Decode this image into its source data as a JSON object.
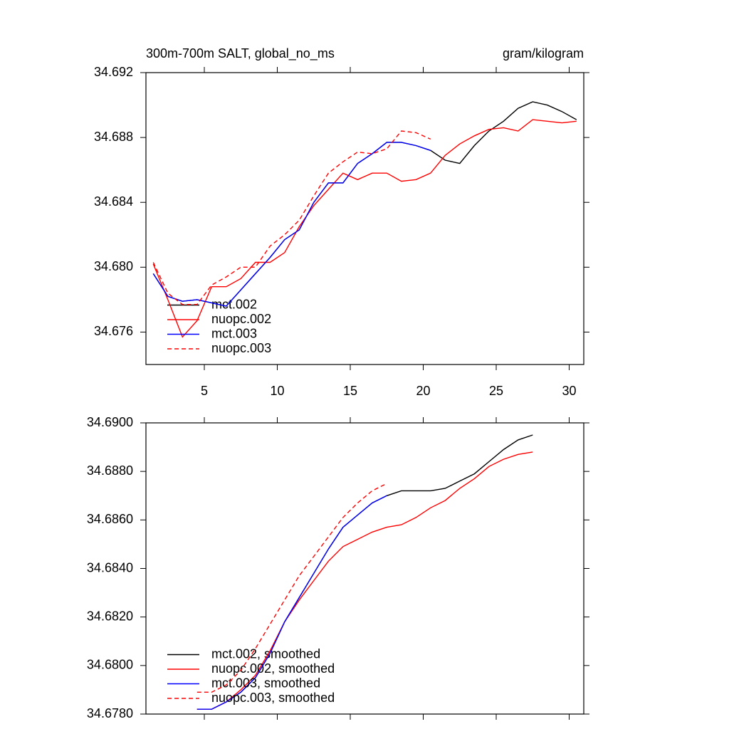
{
  "chart_data": [
    {
      "type": "line",
      "title": "300m-700m SALT, global_no_ms",
      "units": "gram/kilogram",
      "x": [
        1.5,
        2.5,
        3.5,
        4.5,
        5.5,
        6.5,
        7.5,
        8.5,
        9.5,
        10.5,
        11.5,
        12.5,
        13.5,
        14.5,
        15.5,
        16.5,
        17.5,
        18.5,
        19.5,
        20.5,
        21.5,
        22.5,
        23.5,
        24.5,
        25.5,
        26.5,
        27.5,
        28.5,
        29.5,
        30.5
      ],
      "xlim": [
        1,
        31
      ],
      "xticks": [
        5,
        10,
        15,
        20,
        25,
        30
      ],
      "ylim": [
        34.674,
        34.692
      ],
      "yticks": [
        34.676,
        {
          "value": 34.68,
          "label": "34.680"
        },
        34.684,
        34.688,
        34.692
      ],
      "legend": "lower left",
      "series": [
        {
          "name": "mct.002",
          "color": "#000000",
          "style": "solid",
          "values": [
            34.6796,
            34.6782,
            34.6779,
            34.678,
            34.6778,
            34.6776,
            34.6786,
            34.6796,
            34.6806,
            34.6817,
            34.6823,
            34.684,
            34.6852,
            34.6852,
            34.6864,
            34.687,
            34.6877,
            34.6877,
            34.6875,
            34.6872,
            34.6866,
            34.6864,
            34.6875,
            34.6884,
            34.689,
            34.6898,
            34.6902,
            34.69,
            34.6896,
            34.6891
          ]
        },
        {
          "name": "nuopc.002",
          "color": "#ff0000",
          "style": "solid",
          "values": [
            34.6802,
            34.678,
            34.6757,
            34.6767,
            34.6788,
            34.6788,
            34.6793,
            34.6803,
            34.6803,
            34.6809,
            34.6825,
            34.6838,
            34.6848,
            34.6858,
            34.6854,
            34.6858,
            34.6858,
            34.6853,
            34.6854,
            34.6858,
            34.6869,
            34.6876,
            34.6881,
            34.6885,
            34.6886,
            34.6884,
            34.6891,
            34.689,
            34.6889,
            34.689
          ]
        },
        {
          "name": "mct.003",
          "color": "#0000ff",
          "style": "solid",
          "values": [
            34.6796,
            34.6782,
            34.6779,
            34.678,
            34.6778,
            34.6776,
            34.6786,
            34.6796,
            34.6806,
            34.6817,
            34.6823,
            34.684,
            34.6852,
            34.6852,
            34.6864,
            34.687,
            34.6877,
            34.6877,
            34.6875,
            34.6872,
            null,
            null,
            null,
            null,
            null,
            null,
            null,
            null,
            null,
            null
          ]
        },
        {
          "name": "nuopc.003",
          "color": "#ff0000",
          "style": "dashed",
          "values": [
            34.6803,
            34.6784,
            34.6777,
            34.6777,
            34.6789,
            34.6794,
            34.68,
            34.68,
            34.6813,
            34.682,
            34.6829,
            34.6844,
            34.6858,
            34.6865,
            34.6871,
            34.687,
            34.6873,
            34.6884,
            34.6883,
            34.6879,
            null,
            null,
            null,
            null,
            null,
            null,
            null,
            null,
            null,
            null
          ]
        }
      ]
    },
    {
      "type": "line",
      "x": [
        4.5,
        5.5,
        6.5,
        7.5,
        8.5,
        9.5,
        10.5,
        11.5,
        12.5,
        13.5,
        14.5,
        15.5,
        16.5,
        17.5,
        18.5,
        19.5,
        20.5,
        21.5,
        22.5,
        23.5,
        24.5,
        25.5,
        26.5,
        27.5
      ],
      "xlim": [
        1,
        31
      ],
      "xticks": [
        5,
        10,
        15,
        20,
        25,
        30
      ],
      "ylim": [
        34.678,
        34.69
      ],
      "yticks": [
        {
          "value": 34.678,
          "label": "34.6780"
        },
        {
          "value": 34.68,
          "label": "34.6800"
        },
        {
          "value": 34.682,
          "label": "34.6820"
        },
        {
          "value": 34.684,
          "label": "34.6840"
        },
        {
          "value": 34.686,
          "label": "34.6860"
        },
        {
          "value": 34.688,
          "label": "34.6880"
        },
        {
          "value": 34.69,
          "label": "34.6900"
        }
      ],
      "legend": "lower left",
      "series": [
        {
          "name": "mct.002, smoothed",
          "color": "#000000",
          "style": "solid",
          "values": [
            34.6782,
            34.6782,
            34.6785,
            34.6789,
            34.6795,
            34.6805,
            34.6818,
            34.6828,
            34.6838,
            34.6848,
            34.6857,
            34.6862,
            34.6867,
            34.687,
            34.6872,
            34.6872,
            34.6872,
            34.6873,
            34.6876,
            34.6879,
            34.6884,
            34.6889,
            34.6893,
            34.6895
          ]
        },
        {
          "name": "nuopc.002, smoothed",
          "color": "#ff0000",
          "style": "solid",
          "values": [
            34.6782,
            34.6782,
            34.6785,
            34.679,
            34.6796,
            34.6806,
            34.6818,
            34.6827,
            34.6835,
            34.6843,
            34.6849,
            34.6852,
            34.6855,
            34.6857,
            34.6858,
            34.6861,
            34.6865,
            34.6868,
            34.6873,
            34.6877,
            34.6882,
            34.6885,
            34.6887,
            34.6888
          ]
        },
        {
          "name": "mct.003, smoothed",
          "color": "#0000ff",
          "style": "solid",
          "values": [
            34.6782,
            34.6782,
            34.6785,
            34.6789,
            34.6795,
            34.6805,
            34.6818,
            34.6828,
            34.6838,
            34.6848,
            34.6857,
            34.6862,
            34.6867,
            34.687,
            null,
            null,
            null,
            null,
            null,
            null,
            null,
            null,
            null,
            null
          ]
        },
        {
          "name": "nuopc.003, smoothed",
          "color": "#ff0000",
          "style": "dashed",
          "values": [
            34.6789,
            34.6789,
            34.6792,
            34.6798,
            34.6807,
            34.6817,
            34.6827,
            34.6837,
            34.6845,
            34.6853,
            34.6861,
            34.6867,
            34.6872,
            34.6875,
            null,
            null,
            null,
            null,
            null,
            null,
            null,
            null,
            null,
            null
          ]
        }
      ]
    }
  ]
}
